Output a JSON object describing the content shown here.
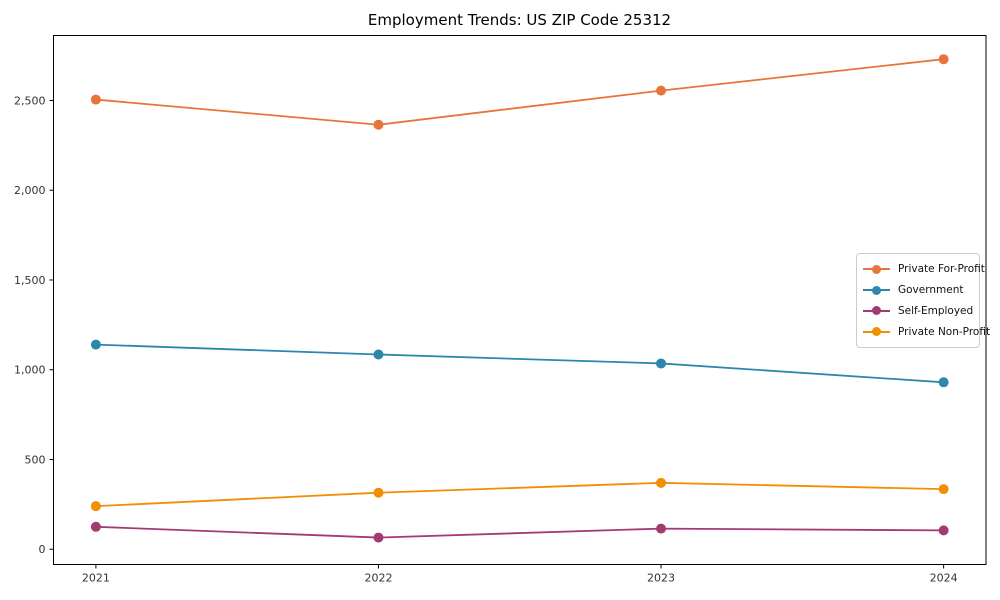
{
  "chart_data": {
    "type": "line",
    "title": "Employment Trends: US ZIP Code 25312",
    "xlabel": "",
    "ylabel": "",
    "x": [
      2021,
      2022,
      2023,
      2024
    ],
    "x_tick_labels": [
      "2021",
      "2022",
      "2023",
      "2024"
    ],
    "yticks": {
      "values": [
        0,
        500,
        1000,
        1500,
        2000,
        2500
      ],
      "labels": [
        "0",
        "500",
        "1,000",
        "1,500",
        "2,000",
        "2,500"
      ]
    },
    "xlim": [
      2020.85,
      2024.15
    ],
    "ylim": [
      -85,
      2862
    ],
    "grid": false,
    "legend_position": "center-right",
    "series": [
      {
        "name": "Private For-Profit",
        "color": "#E8743B",
        "values": [
          2505,
          2365,
          2555,
          2730
        ]
      },
      {
        "name": "Government",
        "color": "#2E86AB",
        "values": [
          1140,
          1085,
          1035,
          930
        ]
      },
      {
        "name": "Self-Employed",
        "color": "#A23B72",
        "values": [
          125,
          65,
          115,
          105
        ]
      },
      {
        "name": "Private Non-Profit",
        "color": "#F18F01",
        "values": [
          240,
          315,
          370,
          335
        ]
      }
    ],
    "axis_color": "#000000",
    "tick_label_color": "#333333"
  }
}
